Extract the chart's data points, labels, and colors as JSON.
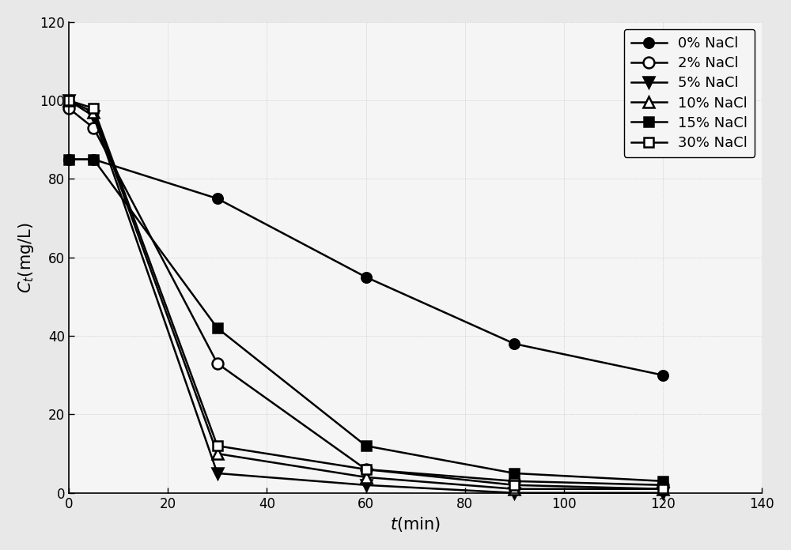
{
  "series": [
    {
      "label": "0% NaCl",
      "x": [
        0,
        5,
        30,
        60,
        90,
        120
      ],
      "y": [
        85,
        85,
        75,
        55,
        38,
        30
      ],
      "marker": "o",
      "fillstyle": "full",
      "color": "black",
      "markersize": 9
    },
    {
      "label": "2% NaCl",
      "x": [
        0,
        5,
        30,
        60,
        90,
        120
      ],
      "y": [
        98,
        93,
        33,
        6,
        3,
        2
      ],
      "marker": "o",
      "fillstyle": "none",
      "color": "black",
      "markersize": 10
    },
    {
      "label": "5% NaCl",
      "x": [
        0,
        5,
        30,
        60,
        90,
        120
      ],
      "y": [
        100,
        96,
        5,
        2,
        0,
        0
      ],
      "marker": "v",
      "fillstyle": "full",
      "color": "black",
      "markersize": 10
    },
    {
      "label": "10% NaCl",
      "x": [
        0,
        5,
        30,
        60,
        90,
        120
      ],
      "y": [
        100,
        97,
        10,
        4,
        1,
        1
      ],
      "marker": "^",
      "fillstyle": "none",
      "color": "black",
      "markersize": 10
    },
    {
      "label": "15% NaCl",
      "x": [
        0,
        5,
        30,
        60,
        90,
        120
      ],
      "y": [
        85,
        85,
        42,
        12,
        5,
        3
      ],
      "marker": "s",
      "fillstyle": "full",
      "color": "black",
      "markersize": 9
    },
    {
      "label": "30% NaCl",
      "x": [
        0,
        5,
        30,
        60,
        90,
        120
      ],
      "y": [
        100,
        98,
        12,
        6,
        2,
        1
      ],
      "marker": "s",
      "fillstyle": "none",
      "color": "black",
      "markersize": 9
    }
  ],
  "xlabel": "t(min)",
  "ylabel": "C_t(mg/L)",
  "xlim": [
    0,
    140
  ],
  "ylim": [
    0,
    120
  ],
  "xticks": [
    0,
    20,
    40,
    60,
    80,
    100,
    120,
    140
  ],
  "yticks": [
    0,
    20,
    40,
    60,
    80,
    100,
    120
  ],
  "legend_loc": "upper right",
  "figure_bg_color": "#e8e8e8",
  "plot_bg_color": "#f5f5f5",
  "linewidth": 1.8,
  "figsize": [
    10.0,
    6.96
  ],
  "dpi": 100
}
